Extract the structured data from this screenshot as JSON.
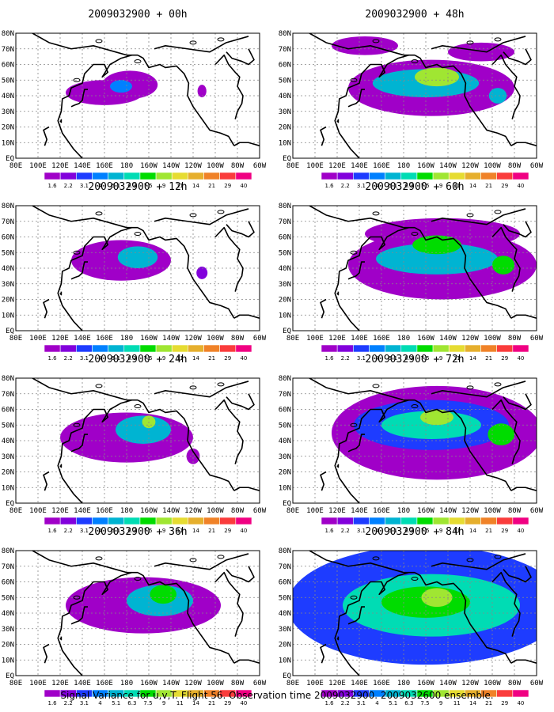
{
  "caption": "Signal Variance for u,v,T. Flight 56. Observation time 2009032900. 2009032600 ensemble.",
  "colorbar": {
    "labels": [
      "1.6",
      "2.2",
      "3.1",
      "4",
      "5.1",
      "6.3",
      "7.5",
      "9",
      "11",
      "14",
      "21",
      "29",
      "40"
    ],
    "colors": [
      "#a000c8",
      "#8200dc",
      "#1e3cff",
      "#0080ff",
      "#00b4d2",
      "#00dcb4",
      "#00dc00",
      "#a0e632",
      "#e6dc32",
      "#e6af2d",
      "#f08228",
      "#fa3c3c",
      "#f00082"
    ]
  },
  "map_axes": {
    "lon_labels": [
      "80E",
      "100E",
      "120E",
      "140E",
      "160E",
      "180",
      "160W",
      "140W",
      "120W",
      "100W",
      "80W",
      "60W"
    ],
    "lat_labels": [
      "EQ",
      "10N",
      "20N",
      "30N",
      "40N",
      "50N",
      "60N",
      "70N",
      "80N"
    ]
  },
  "chart_data": [
    {
      "type": "heatmap",
      "title": "2009032900 + 00h",
      "blobs": [
        {
          "lon": 160,
          "lat": 42,
          "rlon": 35,
          "rlat": 8,
          "level": 0
        },
        {
          "lon": 183,
          "lat": 47,
          "rlon": 25,
          "rlat": 9,
          "level": 0
        },
        {
          "lon": 175,
          "lat": 46,
          "rlon": 10,
          "rlat": 4,
          "level": 3
        },
        {
          "lon": 248,
          "lat": 43,
          "rlon": 4,
          "rlat": 4,
          "level": 0
        }
      ]
    },
    {
      "type": "heatmap",
      "title": "2009032900 + 48h",
      "blobs": [
        {
          "lon": 205,
          "lat": 45,
          "rlon": 75,
          "rlat": 18,
          "level": 0
        },
        {
          "lon": 145,
          "lat": 72,
          "rlon": 30,
          "rlat": 6,
          "level": 0
        },
        {
          "lon": 250,
          "lat": 68,
          "rlon": 30,
          "rlat": 6,
          "level": 0
        },
        {
          "lon": 200,
          "lat": 48,
          "rlon": 48,
          "rlat": 9,
          "level": 4
        },
        {
          "lon": 210,
          "lat": 52,
          "rlon": 20,
          "rlat": 6,
          "level": 7
        },
        {
          "lon": 265,
          "lat": 40,
          "rlon": 8,
          "rlat": 5,
          "level": 4
        }
      ]
    },
    {
      "type": "heatmap",
      "title": "2009032900 + 12h",
      "blobs": [
        {
          "lon": 175,
          "lat": 45,
          "rlon": 45,
          "rlat": 13,
          "level": 0
        },
        {
          "lon": 190,
          "lat": 47,
          "rlon": 18,
          "rlat": 7,
          "level": 4
        },
        {
          "lon": 248,
          "lat": 37,
          "rlon": 5,
          "rlat": 4,
          "level": 1
        }
      ]
    },
    {
      "type": "heatmap",
      "title": "2009032900 + 60h",
      "blobs": [
        {
          "lon": 215,
          "lat": 42,
          "rlon": 85,
          "rlat": 22,
          "level": 0
        },
        {
          "lon": 215,
          "lat": 62,
          "rlon": 70,
          "rlat": 10,
          "level": 0
        },
        {
          "lon": 210,
          "lat": 46,
          "rlon": 55,
          "rlat": 10,
          "level": 4
        },
        {
          "lon": 210,
          "lat": 55,
          "rlon": 22,
          "rlat": 6,
          "level": 6
        },
        {
          "lon": 270,
          "lat": 42,
          "rlon": 10,
          "rlat": 6,
          "level": 6
        }
      ]
    },
    {
      "type": "heatmap",
      "title": "2009032900 + 24h",
      "blobs": [
        {
          "lon": 180,
          "lat": 42,
          "rlon": 60,
          "rlat": 16,
          "level": 0
        },
        {
          "lon": 195,
          "lat": 47,
          "rlon": 25,
          "rlat": 9,
          "level": 4
        },
        {
          "lon": 200,
          "lat": 52,
          "rlon": 6,
          "rlat": 4,
          "level": 7
        },
        {
          "lon": 240,
          "lat": 30,
          "rlon": 6,
          "rlat": 5,
          "level": 0
        }
      ]
    },
    {
      "type": "heatmap",
      "title": "2009032900 + 72h",
      "blobs": [
        {
          "lon": 210,
          "lat": 45,
          "rlon": 95,
          "rlat": 30,
          "level": 0
        },
        {
          "lon": 205,
          "lat": 50,
          "rlon": 70,
          "rlat": 16,
          "level": 2
        },
        {
          "lon": 205,
          "lat": 50,
          "rlon": 45,
          "rlat": 9,
          "level": 5
        },
        {
          "lon": 210,
          "lat": 55,
          "rlon": 15,
          "rlat": 5,
          "level": 7
        },
        {
          "lon": 268,
          "lat": 44,
          "rlon": 12,
          "rlat": 7,
          "level": 6
        }
      ]
    },
    {
      "type": "heatmap",
      "title": "2009032900 + 36h",
      "blobs": [
        {
          "lon": 195,
          "lat": 45,
          "rlon": 70,
          "rlat": 18,
          "level": 0
        },
        {
          "lon": 210,
          "lat": 48,
          "rlon": 30,
          "rlat": 10,
          "level": 4
        },
        {
          "lon": 213,
          "lat": 52,
          "rlon": 12,
          "rlat": 6,
          "level": 6
        }
      ]
    },
    {
      "type": "heatmap",
      "title": "2009032900 + 84h",
      "blobs": [
        {
          "lon": 200,
          "lat": 45,
          "rlon": 125,
          "rlat": 38,
          "level": 2
        },
        {
          "lon": 205,
          "lat": 45,
          "rlon": 80,
          "rlat": 20,
          "level": 5
        },
        {
          "lon": 200,
          "lat": 47,
          "rlon": 40,
          "rlat": 10,
          "level": 6
        },
        {
          "lon": 210,
          "lat": 50,
          "rlon": 14,
          "rlat": 6,
          "level": 7
        }
      ]
    }
  ]
}
